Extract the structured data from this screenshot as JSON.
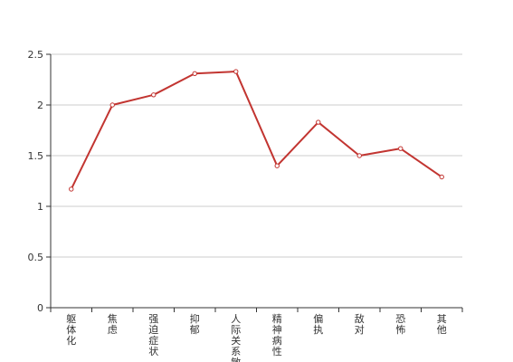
{
  "chart_data": {
    "type": "line",
    "categories": [
      "躯体化",
      "焦虑",
      "强迫症状",
      "抑郁",
      "人际关系敏感",
      "精神病性",
      "偏执",
      "敌对",
      "恐怖",
      "其他"
    ],
    "series": [
      {
        "values": [
          1.17,
          2.0,
          2.1,
          2.31,
          2.33,
          1.4,
          1.83,
          1.5,
          1.57,
          1.29
        ],
        "color": "#c23531"
      }
    ],
    "ylim": [
      0,
      2.5
    ],
    "yticks": [
      "0",
      "0.5",
      "1",
      "1.5",
      "2",
      "2.5"
    ],
    "grid": true,
    "title": "",
    "xlabel": "",
    "ylabel": ""
  }
}
